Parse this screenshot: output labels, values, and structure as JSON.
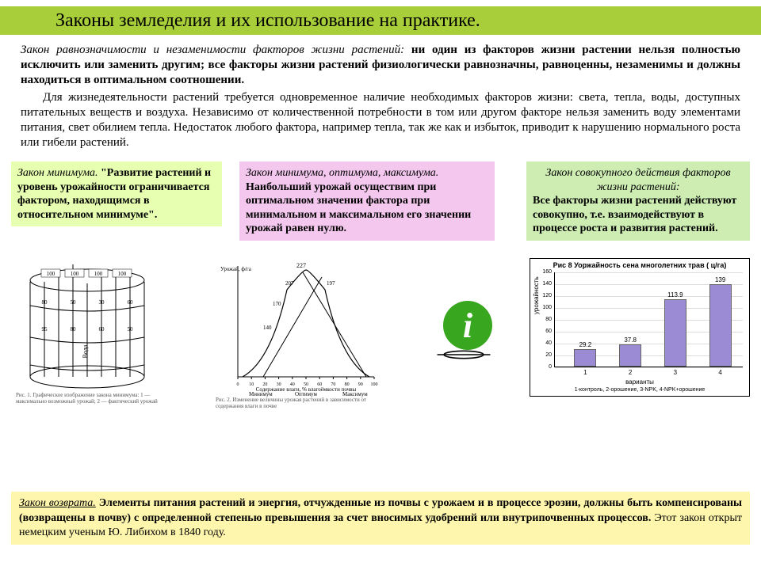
{
  "colors": {
    "title_bg": "#a8cf3a",
    "box_min_bg": "#e6ffb0",
    "box_opt_bg": "#f4c7ee",
    "box_cum_bg": "#cdedb3",
    "bottom_bg": "#fff6ad",
    "info_green": "#38a61f",
    "bar_fill": "#9a8bd4",
    "text": "#000000"
  },
  "title": "Законы земледелия и их использование на практике.",
  "intro": {
    "p1_lead": "Закон равнозначимости и незаменимости факторов жизни растений: ",
    "p1_bold": "ни один из факторов жизни растении нельзя полностью исключить или заменить другим; все факторы жизни растений физиологически равнозначны, равноценны, незаменимы и должны находиться в оптимальном соотношении.",
    "p2": "Для жизнедеятельности растений требуется одновременное наличие необходимых факторов жизни: света, тепла, воды, доступных питательных веществ и воздуха. Независимо от количественной потребности в том или другом факторе нельзя заменить воду элементами питания, свет обилием тепла. Недостаток любого фактора, например тепла, так же как и избыток, приводит к нарушению нормального роста или гибели растений."
  },
  "box_min": {
    "head": "Закон минимума. ",
    "body": "\"Развитие растений и уровень урожайности ограничивается фактором, находящимся в относительном минимуме\"."
  },
  "box_opt": {
    "head": "Закон минимума, оптимума, максимума.",
    "body": "Наибольший урожай осуществим при оптимальном значении фактора при минимальном и максимальном его значении урожай равен нулю."
  },
  "box_cum": {
    "head": "Закон совокупного действия факторов жизни растений:",
    "body": "Все факторы жизни растений действуют совокупно, т.е. взаимодействуют в процессе роста и развития растений."
  },
  "barrel": {
    "caption": "Рис. 1. Графическое изображение закона минимума: 1 — максимально возможный урожай; 2 — фактический урожай",
    "stave_values": [
      "100",
      "100",
      "100",
      "100"
    ],
    "rows": [
      "80",
      "50",
      "30",
      "60",
      "95",
      "80",
      "60",
      "50"
    ],
    "water_label": "Вода"
  },
  "curve": {
    "caption": "Рис. 2. Изменение величины урожая растений в зависимости от содержания влаги в почве",
    "ylabel": "Урожай, ф/га",
    "xlabel": "Содержание влаги, % влагоёмкости почвы",
    "peak": 227,
    "side_vals": [
      207,
      197,
      170,
      140
    ],
    "xticks": [
      0,
      10,
      20,
      30,
      40,
      50,
      60,
      70,
      80,
      90,
      100
    ],
    "xmarks": [
      "Минимум",
      "Оптимум",
      "Максимум"
    ]
  },
  "chart": {
    "title": "Рис 8  Уоржайность сена многолетних трав ( ц/га)",
    "ylabel": "урожайность",
    "xlabel": "варианты",
    "legend": "1-контроль, 2-орошение, 3-NPK, 4-NPK+орошение",
    "ylim": [
      0,
      160
    ],
    "ytick_step": 20,
    "categories": [
      "1",
      "2",
      "3",
      "4"
    ],
    "values": [
      29.2,
      37.8,
      113.9,
      139
    ],
    "bar_color": "#9a8bd4",
    "bg": "#ffffff"
  },
  "info_icon": {
    "glyph": "i"
  },
  "bottom": {
    "head": "Закон возврата.",
    "body": " Элементы питания растений и энергия, отчужденные из почвы с урожаем и в процессе эрозии, должны быть компенсированы (возвращены в почву) с определенной степенью превышения за счет вносимых удобрений или внутрипочвенных процессов.",
    "tail": "  Этот закон открыт немецким   ученым Ю. Либихом в 1840 году."
  }
}
